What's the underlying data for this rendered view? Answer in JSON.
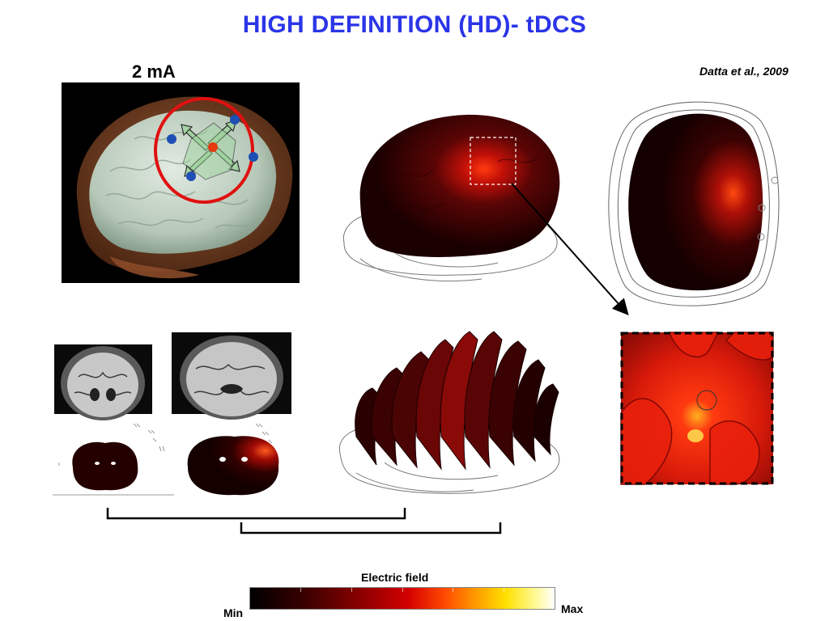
{
  "title": "HIGH DEFINITION (HD)- tDCS",
  "current_label": "2 mA",
  "citation": "Datta et al., 2009",
  "colorbar": {
    "title": "Electric field",
    "min_label": "Min",
    "max_label": "Max"
  },
  "colors": {
    "title": "#2b35e8",
    "highlight_ring": "#e01010",
    "electrode": "#1e4fb5",
    "center_electrode": "#e33a10"
  }
}
